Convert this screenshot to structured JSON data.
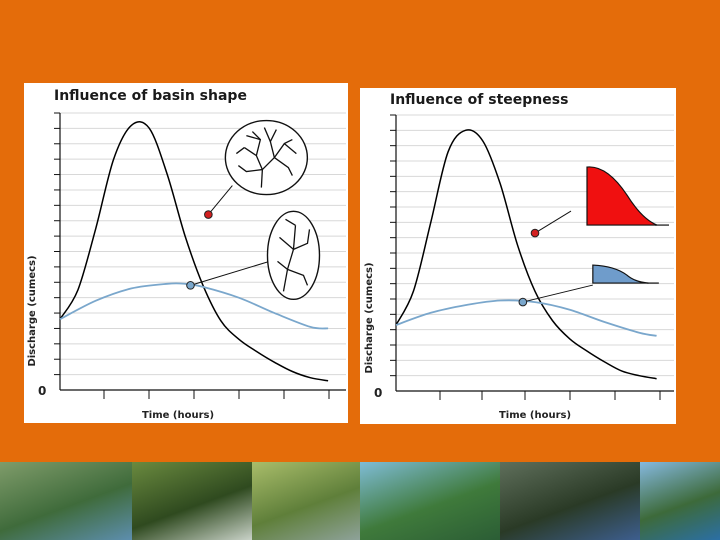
{
  "chart_data": [
    {
      "type": "line",
      "title": "Influence of basin shape",
      "xlabel": "Time (hours)",
      "ylabel": "Discharge (cumecs)",
      "origin_label": "0",
      "ylim": [
        0,
        18
      ],
      "xlim": [
        0,
        16
      ],
      "grid": true,
      "series": [
        {
          "color": "#000000",
          "x": [
            0,
            1,
            2,
            3,
            4,
            5,
            6,
            7,
            8,
            9,
            10,
            11,
            12,
            13,
            14,
            15
          ],
          "y": [
            4.6,
            6.5,
            10.5,
            15.0,
            17.2,
            17.0,
            14.0,
            10.0,
            6.8,
            4.5,
            3.3,
            2.5,
            1.8,
            1.2,
            0.8,
            0.6
          ],
          "marker": {
            "x": 8.3,
            "y": 11.4,
            "color": "#d32020"
          },
          "inset": "circular-basin-drainage"
        },
        {
          "color": "#7aa7cc",
          "x": [
            0,
            2,
            4,
            6,
            7,
            8,
            10,
            12,
            14,
            15
          ],
          "y": [
            4.6,
            5.8,
            6.6,
            6.9,
            6.9,
            6.7,
            6.0,
            5.0,
            4.1,
            4.0
          ],
          "marker": {
            "x": 7.3,
            "y": 6.8,
            "color": "#7aa7cc"
          },
          "inset": "elongated-basin-drainage"
        }
      ]
    },
    {
      "type": "line",
      "title": "Influence of steepness",
      "xlabel": "Time (hours)",
      "ylabel": "Discharge (cumecs)",
      "origin_label": "0",
      "ylim": [
        0,
        18
      ],
      "xlim": [
        0,
        16
      ],
      "grid": true,
      "series": [
        {
          "color": "#000000",
          "x": [
            0,
            1,
            2,
            3,
            4,
            5,
            6,
            7,
            8,
            9,
            10,
            11,
            12,
            13,
            14,
            15
          ],
          "y": [
            4.3,
            6.5,
            11.0,
            15.6,
            17.0,
            16.3,
            13.5,
            9.5,
            6.5,
            4.6,
            3.4,
            2.6,
            1.9,
            1.3,
            1.0,
            0.8
          ],
          "marker": {
            "x": 8.0,
            "y": 10.3,
            "color": "#d32020"
          },
          "inset": "steep-profile"
        },
        {
          "color": "#7aa7cc",
          "x": [
            0,
            2,
            4,
            6,
            8,
            10,
            12,
            14,
            15
          ],
          "y": [
            4.3,
            5.1,
            5.6,
            5.9,
            5.8,
            5.3,
            4.5,
            3.8,
            3.6
          ],
          "marker": {
            "x": 7.3,
            "y": 5.8,
            "color": "#7aa7cc"
          },
          "inset": "gentle-profile"
        }
      ]
    }
  ],
  "photos": [
    {
      "name": "meander-photo",
      "colors": [
        "#7f9c6a",
        "#3f6b3b",
        "#5d8eae"
      ]
    },
    {
      "name": "forest-stream-photo",
      "colors": [
        "#6a8a3f",
        "#2f4a1f",
        "#c9d2c8"
      ]
    },
    {
      "name": "wetland-river-photo",
      "colors": [
        "#a9bd6a",
        "#5f7f3a",
        "#8ea29a"
      ]
    },
    {
      "name": "aerial-river-photo",
      "colors": [
        "#7fbcd6",
        "#3f7a3b",
        "#2b5d35"
      ]
    },
    {
      "name": "dark-river-photo",
      "colors": [
        "#5f6f5b",
        "#2a3a26",
        "#3d5e8f"
      ]
    },
    {
      "name": "blue-river-photo",
      "colors": [
        "#86b9e0",
        "#3d6a3a",
        "#2b6fa5"
      ]
    }
  ]
}
